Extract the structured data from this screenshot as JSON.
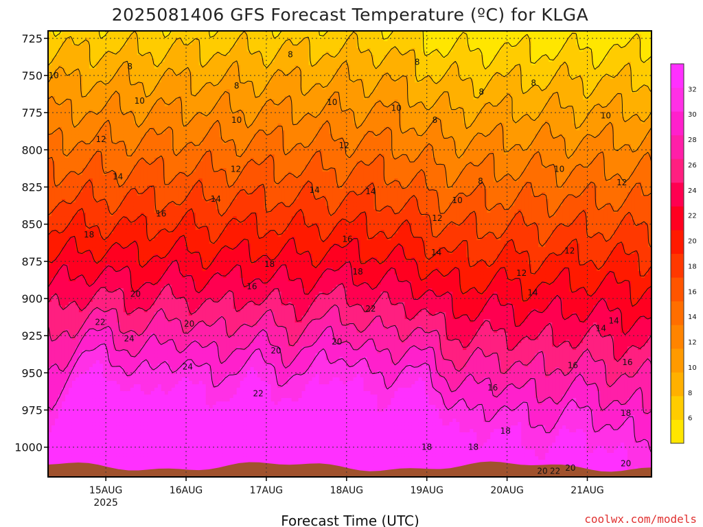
{
  "credit": "coolwx.com/models",
  "colors": {
    "ground": "#a0522d",
    "scale": [
      "#ffe600",
      "#ffcc00",
      "#ffb000",
      "#ff9a00",
      "#ff8400",
      "#ff6e00",
      "#ff5500",
      "#ff3800",
      "#ff1a00",
      "#ff0020",
      "#ff0050",
      "#ff1f80",
      "#ff1fa8",
      "#ff20cc",
      "#ff30e6",
      "#ff30ff"
    ]
  },
  "chart_data": {
    "type": "heatmap",
    "title": "2025081406 GFS Forecast Temperature (ºC) for KLGA",
    "xlabel": "Forecast Time (UTC)",
    "ylabel": "",
    "x_ticks": [
      "15AUG",
      "16AUG",
      "17AUG",
      "18AUG",
      "19AUG",
      "20AUG",
      "21AUG"
    ],
    "x_tick_sub": [
      "2025",
      "",
      "",
      "",
      "",
      "",
      ""
    ],
    "xlim_days": [
      -0.72,
      6.8
    ],
    "y_ticks": [
      725,
      750,
      775,
      800,
      825,
      850,
      875,
      900,
      925,
      950,
      975,
      1000
    ],
    "ylim_hpa": [
      720,
      1020
    ],
    "colorbar": {
      "min": 4,
      "max": 34,
      "step": 2,
      "labels": [
        6,
        8,
        10,
        12,
        14,
        16,
        18,
        20,
        22,
        24,
        26,
        28,
        30,
        32
      ]
    },
    "contour_labels": [
      {
        "t": -0.65,
        "p": 750,
        "v": "10"
      },
      {
        "t": 0.3,
        "p": 744,
        "v": "8"
      },
      {
        "t": 1.63,
        "p": 757,
        "v": "8"
      },
      {
        "t": 2.3,
        "p": 736,
        "v": "8"
      },
      {
        "t": 3.88,
        "p": 741,
        "v": "8"
      },
      {
        "t": 4.1,
        "p": 780,
        "v": "8"
      },
      {
        "t": 4.68,
        "p": 761,
        "v": "8"
      },
      {
        "t": 5.33,
        "p": 755,
        "v": "8"
      },
      {
        "t": 4.67,
        "p": 821,
        "v": "8"
      },
      {
        "t": 0.42,
        "p": 767,
        "v": "10"
      },
      {
        "t": 1.63,
        "p": 780,
        "v": "10"
      },
      {
        "t": 2.82,
        "p": 768,
        "v": "10"
      },
      {
        "t": 3.62,
        "p": 772,
        "v": "10"
      },
      {
        "t": 4.38,
        "p": 834,
        "v": "10"
      },
      {
        "t": 5.65,
        "p": 813,
        "v": "10"
      },
      {
        "t": 6.23,
        "p": 777,
        "v": "10"
      },
      {
        "t": -0.06,
        "p": 793,
        "v": "12"
      },
      {
        "t": 1.62,
        "p": 813,
        "v": "12"
      },
      {
        "t": 2.97,
        "p": 797,
        "v": "12"
      },
      {
        "t": 4.13,
        "p": 846,
        "v": "12"
      },
      {
        "t": 5.18,
        "p": 883,
        "v": "12"
      },
      {
        "t": 5.78,
        "p": 868,
        "v": "12"
      },
      {
        "t": 6.43,
        "p": 822,
        "v": "12"
      },
      {
        "t": 0.15,
        "p": 818,
        "v": "14"
      },
      {
        "t": 1.37,
        "p": 833,
        "v": "14"
      },
      {
        "t": 2.6,
        "p": 827,
        "v": "14"
      },
      {
        "t": 3.3,
        "p": 828,
        "v": "14"
      },
      {
        "t": 4.12,
        "p": 869,
        "v": "14"
      },
      {
        "t": 5.32,
        "p": 896,
        "v": "14"
      },
      {
        "t": 6.17,
        "p": 920,
        "v": "14"
      },
      {
        "t": 6.33,
        "p": 915,
        "v": "14"
      },
      {
        "t": 0.69,
        "p": 843,
        "v": "16"
      },
      {
        "t": 1.82,
        "p": 892,
        "v": "16"
      },
      {
        "t": 3.01,
        "p": 860,
        "v": "16"
      },
      {
        "t": 4.82,
        "p": 960,
        "v": "16"
      },
      {
        "t": 5.82,
        "p": 945,
        "v": "16"
      },
      {
        "t": 6.5,
        "p": 943,
        "v": "16"
      },
      {
        "t": -0.21,
        "p": 857,
        "v": "18"
      },
      {
        "t": 2.04,
        "p": 877,
        "v": "18"
      },
      {
        "t": 3.14,
        "p": 882,
        "v": "18"
      },
      {
        "t": 4.58,
        "p": 1000,
        "v": "18"
      },
      {
        "t": 4.98,
        "p": 989,
        "v": "18"
      },
      {
        "t": 6.48,
        "p": 977,
        "v": "18"
      },
      {
        "t": 0.37,
        "p": 897,
        "v": "20"
      },
      {
        "t": 1.04,
        "p": 917,
        "v": "20"
      },
      {
        "t": 2.12,
        "p": 935,
        "v": "20"
      },
      {
        "t": 2.88,
        "p": 929,
        "v": "20"
      },
      {
        "t": 5.79,
        "p": 1014,
        "v": "20"
      },
      {
        "t": 5.44,
        "p": 1016,
        "v": "20"
      },
      {
        "t": 6.48,
        "p": 1011,
        "v": "20"
      },
      {
        "t": 1.9,
        "p": 964,
        "v": "22"
      },
      {
        "t": 3.3,
        "p": 907,
        "v": "22"
      },
      {
        "t": 5.6,
        "p": 1016,
        "v": "22"
      },
      {
        "t": -0.07,
        "p": 916,
        "v": "22"
      },
      {
        "t": 0.29,
        "p": 927,
        "v": "24"
      },
      {
        "t": 1.02,
        "p": 946,
        "v": "24"
      },
      {
        "t": 4.0,
        "p": 1000,
        "v": "18"
      }
    ]
  }
}
